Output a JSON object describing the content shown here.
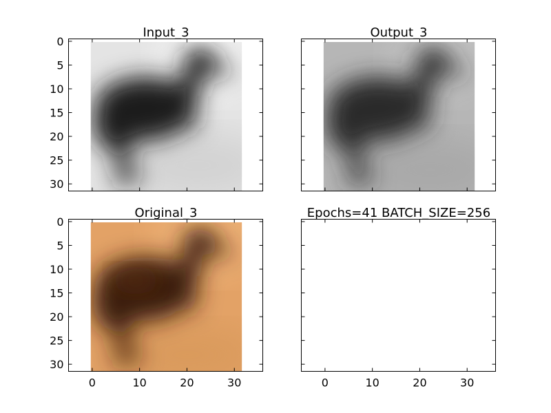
{
  "figure": {
    "background": "#ffffff"
  },
  "chart_data": [
    {
      "type": "image",
      "title": "Input_3",
      "image_description": "grayscale 32x32 photo of a dark duckling standing facing right on a light background",
      "colormap": "gray",
      "xlim": [
        -5,
        36
      ],
      "ylim": [
        31.5,
        -0.5
      ],
      "xticks": [
        0,
        10,
        20,
        30
      ],
      "yticks": [
        0,
        5,
        10,
        15,
        20,
        25,
        30
      ],
      "show_xtick_labels": false,
      "show_ytick_labels": true
    },
    {
      "type": "image",
      "title": "Output_3",
      "image_description": "lower-contrast grayscale 32x32 reconstruction of the duckling on a mid-gray background",
      "colormap": "gray",
      "xlim": [
        -5,
        36
      ],
      "ylim": [
        31.5,
        -0.5
      ],
      "xticks": [
        0,
        10,
        20,
        30
      ],
      "yticks": [
        0,
        5,
        10,
        15,
        20,
        25,
        30
      ],
      "show_xtick_labels": false,
      "show_ytick_labels": false
    },
    {
      "type": "image",
      "title": "Original_3",
      "image_description": "color 32x32 photo of a dark brown duckling on a tan/orange background",
      "colormap": "rgb",
      "xlim": [
        -5,
        36
      ],
      "ylim": [
        31.5,
        -0.5
      ],
      "xticks": [
        0,
        10,
        20,
        30
      ],
      "yticks": [
        0,
        5,
        10,
        15,
        20,
        25,
        30
      ],
      "show_xtick_labels": true,
      "show_ytick_labels": true
    },
    {
      "type": "empty",
      "title": "Epochs=41 BATCH_SIZE=256",
      "xlim": [
        -5,
        36
      ],
      "ylim": [
        31.5,
        -0.5
      ],
      "xticks": [
        0,
        10,
        20,
        30
      ],
      "yticks": [
        0,
        5,
        10,
        15,
        20,
        25,
        30
      ],
      "show_xtick_labels": true,
      "show_ytick_labels": false
    }
  ]
}
